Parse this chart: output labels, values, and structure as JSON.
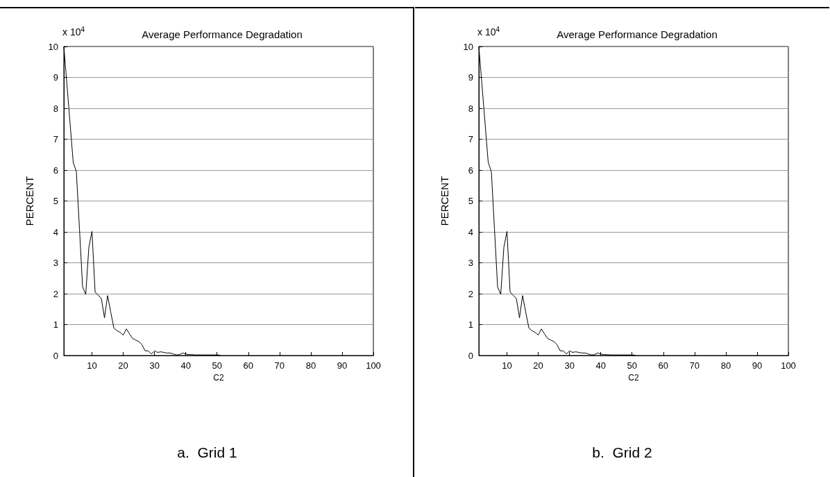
{
  "chart_data": [
    {
      "type": "line",
      "title": "Average Performance Degradation",
      "xlabel": "C2",
      "ylabel": "PERCENT",
      "annotations": [
        "x 10$^{4}$",
        "a.  Grid 1"
      ],
      "x": [
        1,
        2,
        3,
        4,
        5,
        6,
        7,
        8,
        9,
        10,
        11,
        12,
        13,
        14,
        15,
        16,
        17,
        18,
        19,
        20,
        21,
        22,
        23,
        24,
        25,
        26,
        27,
        28,
        29,
        30,
        31,
        32,
        33,
        34,
        35,
        36,
        37,
        38,
        39,
        40,
        41,
        42,
        43,
        44,
        45,
        46,
        47,
        48,
        49,
        50,
        51
      ],
      "series": [
        {
          "color": "#000000",
          "values": [
            10,
            8.75,
            7.5,
            6.25,
            5.95,
            4.1,
            2.22,
            1.98,
            3.5,
            4.02,
            2.05,
            1.95,
            1.84,
            1.22,
            1.94,
            1.4,
            0.89,
            0.8,
            0.75,
            0.66,
            0.86,
            0.7,
            0.55,
            0.5,
            0.45,
            0.35,
            0.15,
            0.15,
            0.05,
            0.15,
            0.1,
            0.12,
            0.1,
            0.08,
            0.08,
            0.05,
            0.02,
            0.03,
            0.08,
            0.05,
            0.03,
            0.03,
            0.02,
            0.02,
            0.02,
            0.02,
            0.02,
            0.02,
            0.02,
            0.02,
            0.01
          ]
        }
      ],
      "xlim": [
        1,
        100
      ],
      "xticks": [
        10,
        20,
        30,
        40,
        50,
        60,
        70,
        80,
        90,
        100
      ],
      "ylim": [
        0,
        10
      ],
      "yticks": [
        0,
        1,
        2,
        3,
        4,
        5,
        6,
        7,
        8,
        9,
        10
      ],
      "grid": "y",
      "marker": "none",
      "line_style": "solid"
    },
    {
      "type": "line",
      "title": "Average Performance Degradation",
      "xlabel": "C2",
      "ylabel": "PERCENT",
      "annotations": [
        "x 10$^{4}$",
        "b.  Grid 2"
      ],
      "x": [
        1,
        2,
        3,
        4,
        5,
        6,
        7,
        8,
        9,
        10,
        11,
        12,
        13,
        14,
        15,
        16,
        17,
        18,
        19,
        20,
        21,
        22,
        23,
        24,
        25,
        26,
        27,
        28,
        29,
        30,
        31,
        32,
        33,
        34,
        35,
        36,
        37,
        38,
        39,
        40,
        41,
        42,
        43,
        44,
        45,
        46,
        47,
        48,
        49,
        50,
        51
      ],
      "series": [
        {
          "color": "#000000",
          "values": [
            10,
            8.75,
            7.5,
            6.25,
            5.95,
            4.1,
            2.22,
            1.98,
            3.5,
            4.02,
            2.05,
            1.95,
            1.84,
            1.22,
            1.94,
            1.4,
            0.89,
            0.8,
            0.75,
            0.66,
            0.86,
            0.7,
            0.55,
            0.5,
            0.45,
            0.35,
            0.15,
            0.15,
            0.05,
            0.15,
            0.1,
            0.12,
            0.1,
            0.08,
            0.08,
            0.05,
            0.02,
            0.03,
            0.08,
            0.05,
            0.03,
            0.03,
            0.02,
            0.02,
            0.02,
            0.02,
            0.02,
            0.02,
            0.02,
            0.02,
            0.01
          ]
        }
      ],
      "xlim": [
        1,
        100
      ],
      "xticks": [
        10,
        20,
        30,
        40,
        50,
        60,
        70,
        80,
        90,
        100
      ],
      "ylim": [
        0,
        10
      ],
      "yticks": [
        0,
        1,
        2,
        3,
        4,
        5,
        6,
        7,
        8,
        9,
        10
      ],
      "grid": "y",
      "marker": "none",
      "line_style": "solid"
    }
  ]
}
